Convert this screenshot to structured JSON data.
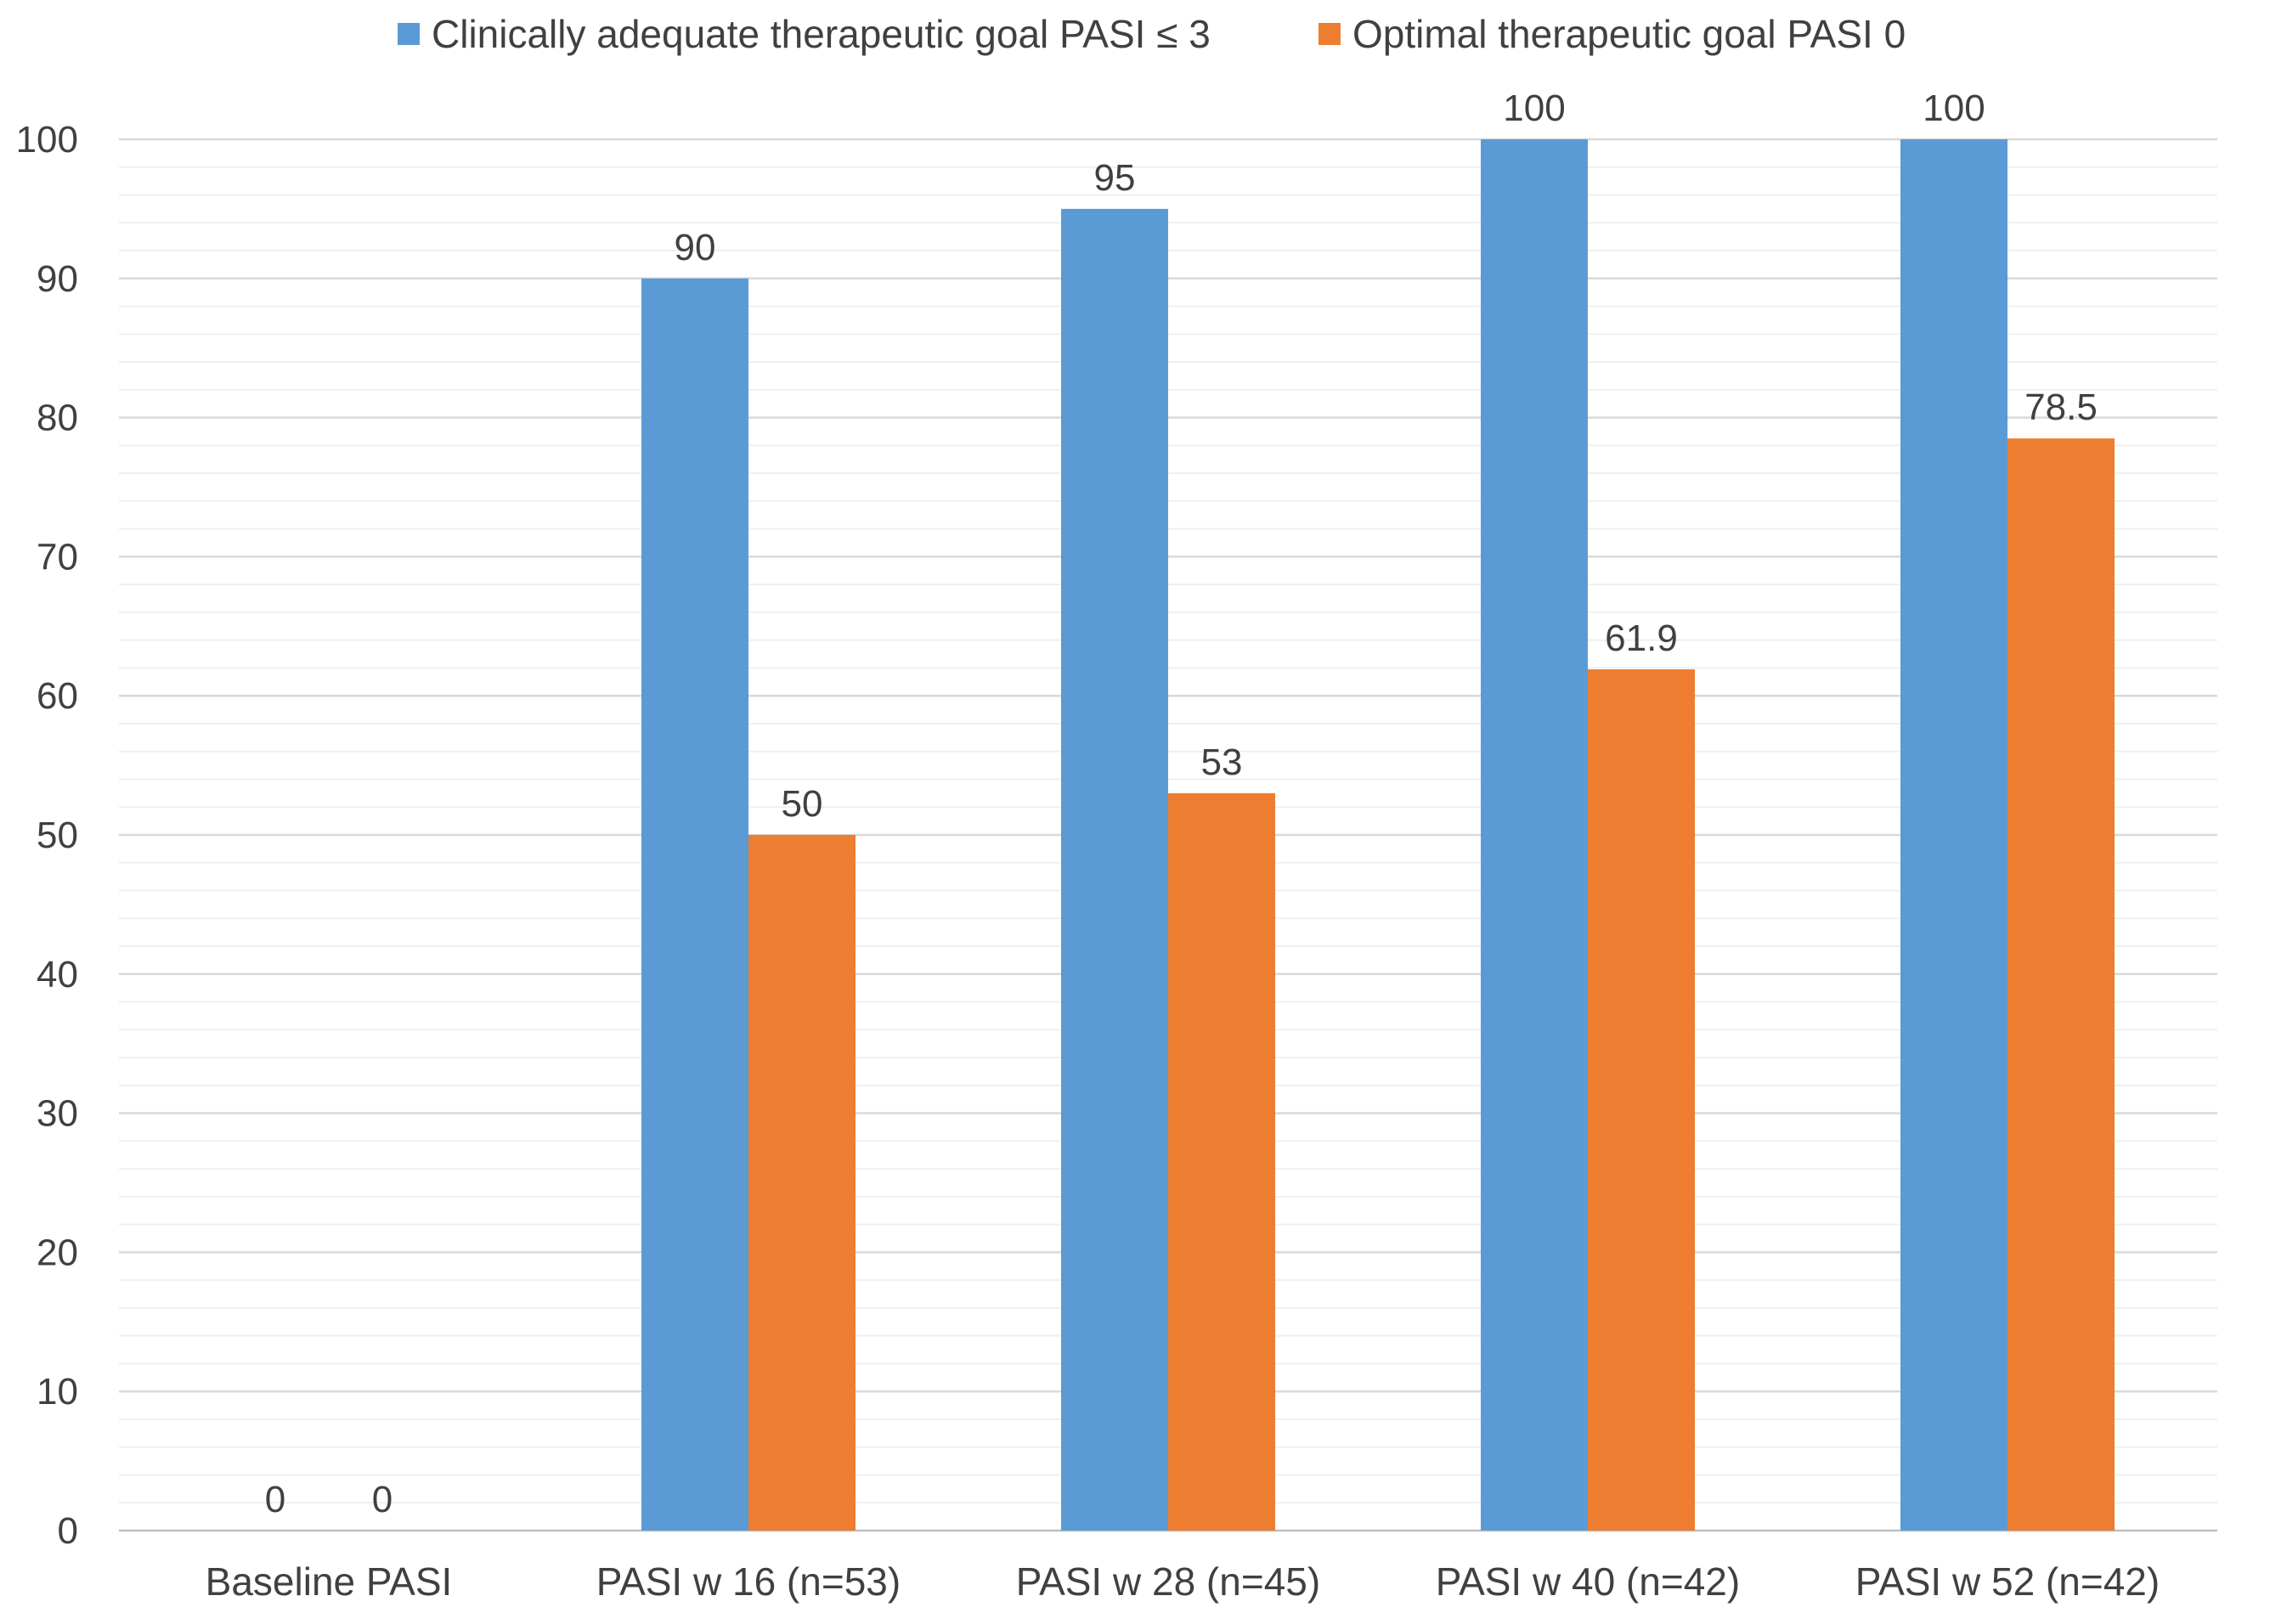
{
  "chart_data": {
    "type": "bar",
    "title": "",
    "xlabel": "",
    "ylabel": "",
    "ylim": [
      0,
      100
    ],
    "y_ticks": [
      0,
      10,
      20,
      30,
      40,
      50,
      60,
      70,
      80,
      90,
      100
    ],
    "minor_grid_step": 2,
    "grid": true,
    "legend_position": "top-center",
    "categories": [
      "Baseline PASI",
      "PASI w 16 (n=53)",
      "PASI w 28 (n=45)",
      "PASI w 40 (n=42)",
      "PASI w 52 (n=42)"
    ],
    "series": [
      {
        "name": "Clinically adequate therapeutic goal PASI ≤ 3",
        "color": "#5b9bd5",
        "values": [
          0,
          90,
          95,
          100,
          100
        ],
        "labels": [
          "0",
          "90",
          "95",
          "100",
          "100"
        ]
      },
      {
        "name": "Optimal therapeutic goal PASI 0",
        "color": "#ed7d31",
        "values": [
          0,
          50,
          53,
          61.9,
          78.5
        ],
        "labels": [
          "0",
          "50",
          "53",
          "61.9",
          "78.5"
        ]
      }
    ]
  },
  "colors": {
    "major_grid": "#d9d9d9",
    "minor_grid": "#efefef",
    "text": "#404040"
  }
}
